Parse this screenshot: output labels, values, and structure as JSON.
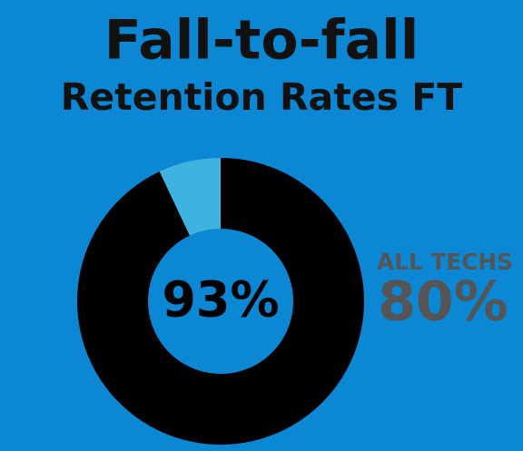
{
  "chart_data": {
    "type": "donut",
    "title": "Fall-to-fall",
    "subtitle": "Retention Rates FT",
    "values": [
      93,
      7
    ],
    "value_labels": [
      "93%",
      null
    ],
    "colors": [
      "#000000",
      "#3fb3df"
    ],
    "annotations": [
      "ALL TECHS",
      "80%"
    ]
  }
}
